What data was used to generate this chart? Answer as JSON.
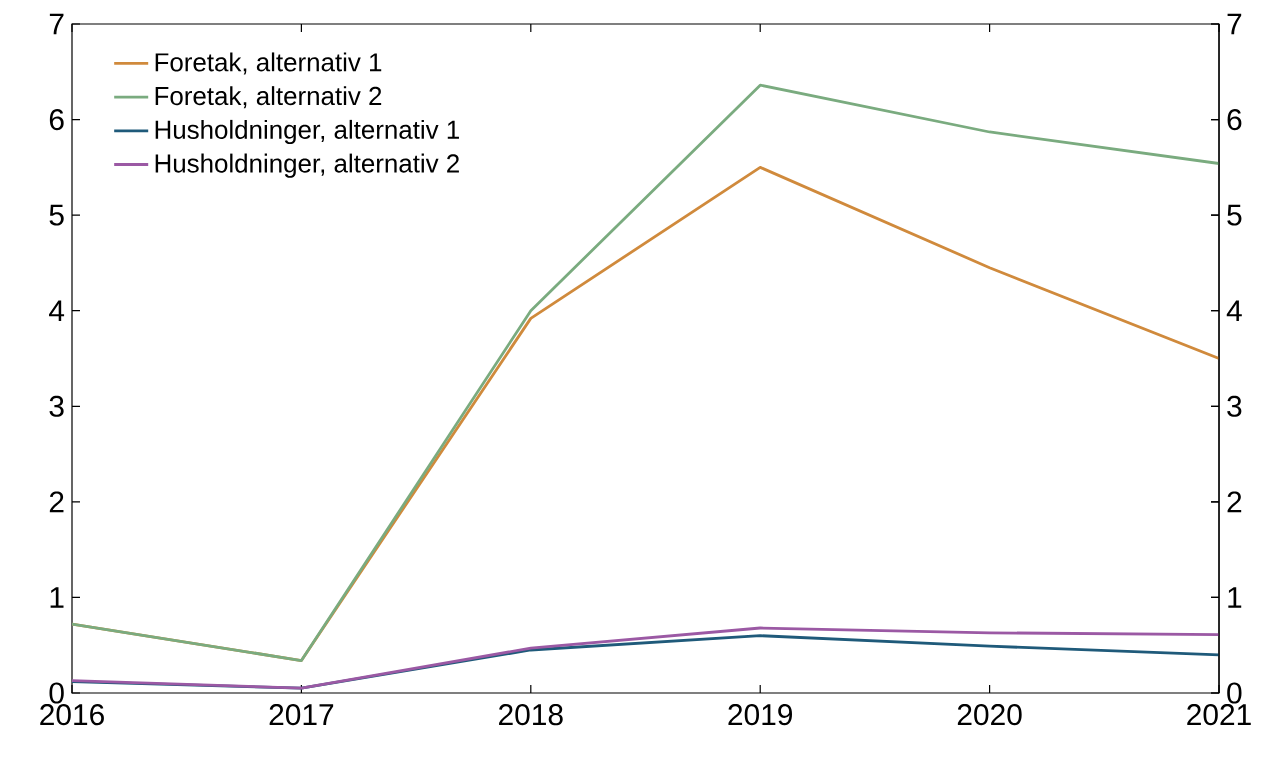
{
  "chart_data": {
    "type": "line",
    "x": [
      2016,
      2017,
      2018,
      2019,
      2020,
      2021
    ],
    "series": [
      {
        "name": "Foretak, alternativ 1",
        "color": "#d08a3c",
        "values": [
          0.72,
          0.34,
          3.92,
          5.5,
          4.45,
          3.5
        ]
      },
      {
        "name": "Foretak, alternativ 2",
        "color": "#7aab7f",
        "values": [
          0.72,
          0.34,
          4.0,
          6.36,
          5.87,
          5.54
        ]
      },
      {
        "name": "Husholdninger, alternativ 1",
        "color": "#1f5a7a",
        "values": [
          0.12,
          0.05,
          0.45,
          0.6,
          0.49,
          0.4
        ]
      },
      {
        "name": "Husholdninger, alternativ 2",
        "color": "#9b59a4",
        "values": [
          0.13,
          0.05,
          0.47,
          0.68,
          0.63,
          0.61
        ]
      }
    ],
    "xlim": [
      2016,
      2021
    ],
    "xticks": [
      2016,
      2017,
      2018,
      2019,
      2020,
      2021
    ],
    "ylim": [
      0,
      7
    ],
    "yticks": [
      0,
      1,
      2,
      3,
      4,
      5,
      6,
      7
    ],
    "y2lim": [
      0,
      7
    ],
    "y2ticks": [
      0,
      1,
      2,
      3,
      4,
      5,
      6,
      7
    ],
    "legend": "top left"
  }
}
